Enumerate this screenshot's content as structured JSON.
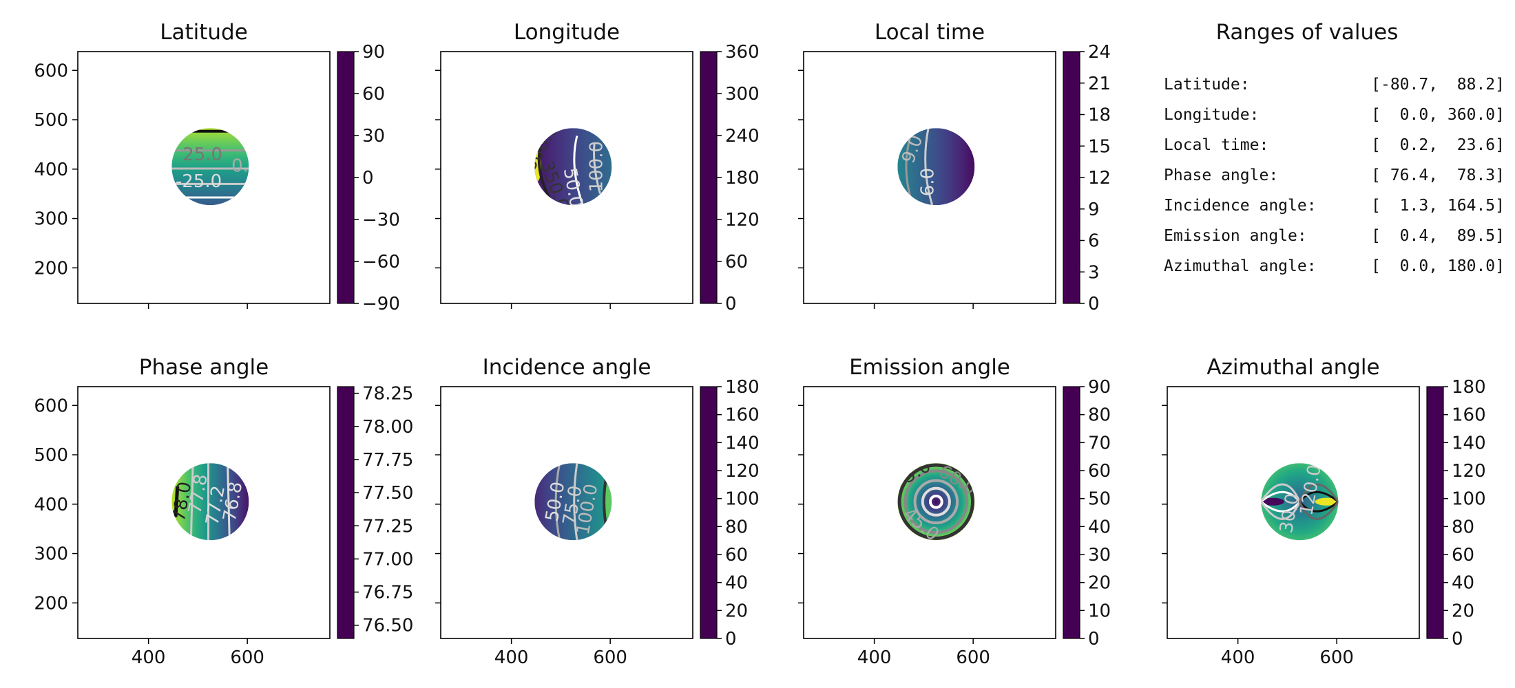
{
  "chart_data": [
    {
      "type": "heatmap",
      "title": "Latitude",
      "x_ticks": [
        400,
        600
      ],
      "x_tick_labels_shown": false,
      "y_ticks": [
        200,
        300,
        400,
        500,
        600
      ],
      "y_tick_labels_shown": true,
      "xlim": [
        257,
        767
      ],
      "ylim": [
        128,
        638
      ],
      "colorbar": {
        "min": -90,
        "max": 90,
        "ticks": [
          90,
          60,
          30,
          0,
          -30,
          -60,
          -90
        ],
        "tick_labels": [
          "90",
          "60",
          "30",
          "0",
          "−30",
          "−60",
          "−90"
        ]
      },
      "disk_center": [
        525,
        405
      ],
      "disk_radius": 78,
      "field": "lat",
      "colormap": "viridis",
      "contour_labels": [
        "25.0",
        "-25.0",
        "0.0"
      ]
    },
    {
      "type": "heatmap",
      "title": "Longitude",
      "x_ticks": [
        400,
        600
      ],
      "x_tick_labels_shown": false,
      "y_ticks": [
        200,
        300,
        400,
        500,
        600
      ],
      "y_tick_labels_shown": false,
      "xlim": [
        257,
        767
      ],
      "ylim": [
        128,
        638
      ],
      "colorbar": {
        "min": 0,
        "max": 360,
        "ticks": [
          360,
          300,
          240,
          180,
          120,
          60,
          0
        ],
        "tick_labels": [
          "360",
          "300",
          "240",
          "180",
          "120",
          "60",
          "0"
        ]
      },
      "disk_center": [
        525,
        405
      ],
      "disk_radius": 78,
      "field": "lon",
      "colormap": "viridis",
      "contour_labels": [
        "300.0",
        "350.0",
        "50.0",
        "100.0"
      ]
    },
    {
      "type": "heatmap",
      "title": "Local time",
      "x_ticks": [
        400,
        600
      ],
      "x_tick_labels_shown": false,
      "y_ticks": [
        200,
        300,
        400,
        500,
        600
      ],
      "y_tick_labels_shown": false,
      "xlim": [
        257,
        767
      ],
      "ylim": [
        128,
        638
      ],
      "colorbar": {
        "min": 0,
        "max": 24,
        "ticks": [
          24,
          21,
          18,
          15,
          12,
          9,
          6,
          3,
          0
        ],
        "tick_labels": [
          "24",
          "21",
          "18",
          "15",
          "12",
          "9",
          "6",
          "3",
          "0"
        ]
      },
      "disk_center": [
        525,
        405
      ],
      "disk_radius": 78,
      "field": "lt",
      "colormap": "viridis",
      "contour_labels": [
        "9.0",
        "6.0"
      ]
    },
    {
      "type": "heatmap",
      "title": "Phase angle",
      "x_ticks": [
        400,
        600
      ],
      "x_tick_labels_shown": true,
      "y_ticks": [
        200,
        300,
        400,
        500,
        600
      ],
      "y_tick_labels_shown": true,
      "xlim": [
        257,
        767
      ],
      "ylim": [
        128,
        638
      ],
      "colorbar": {
        "min": 76.4,
        "max": 78.3,
        "ticks": [
          78.25,
          78.0,
          77.75,
          77.5,
          77.25,
          77.0,
          76.75,
          76.5
        ],
        "tick_labels": [
          "78.25",
          "78.00",
          "77.75",
          "77.50",
          "77.25",
          "77.00",
          "76.75",
          "76.50"
        ]
      },
      "disk_center": [
        525,
        405
      ],
      "disk_radius": 78,
      "field": "phase",
      "colormap": "viridis",
      "contour_labels": [
        "78.0",
        "77.8",
        "77.2",
        "76.8"
      ]
    },
    {
      "type": "heatmap",
      "title": "Incidence angle",
      "x_ticks": [
        400,
        600
      ],
      "x_tick_labels_shown": true,
      "y_ticks": [
        200,
        300,
        400,
        500,
        600
      ],
      "y_tick_labels_shown": false,
      "xlim": [
        257,
        767
      ],
      "ylim": [
        128,
        638
      ],
      "colorbar": {
        "min": 0,
        "max": 180,
        "ticks": [
          180,
          160,
          140,
          120,
          100,
          80,
          60,
          40,
          20,
          0
        ],
        "tick_labels": [
          "180",
          "160",
          "140",
          "120",
          "100",
          "80",
          "60",
          "40",
          "20",
          "0"
        ]
      },
      "disk_center": [
        525,
        405
      ],
      "disk_radius": 78,
      "field": "inc",
      "colormap": "viridis",
      "contour_labels": [
        "50.0",
        "75.0",
        "100.0"
      ]
    },
    {
      "type": "heatmap",
      "title": "Emission angle",
      "x_ticks": [
        400,
        600
      ],
      "x_tick_labels_shown": true,
      "y_ticks": [
        200,
        300,
        400,
        500,
        600
      ],
      "y_tick_labels_shown": false,
      "xlim": [
        257,
        767
      ],
      "ylim": [
        128,
        638
      ],
      "colorbar": {
        "min": 0,
        "max": 90,
        "ticks": [
          90,
          80,
          70,
          60,
          50,
          40,
          30,
          20,
          10,
          0
        ],
        "tick_labels": [
          "90",
          "80",
          "70",
          "60",
          "50",
          "40",
          "30",
          "20",
          "10",
          "0"
        ]
      },
      "disk_center": [
        525,
        405
      ],
      "disk_radius": 78,
      "field": "emi",
      "colormap": "viridis",
      "contour_labels": [
        "75.0",
        "60.0",
        "45.0"
      ]
    },
    {
      "type": "heatmap",
      "title": "Azimuthal angle",
      "x_ticks": [
        400,
        600
      ],
      "x_tick_labels_shown": true,
      "y_ticks": [
        200,
        300,
        400,
        500,
        600
      ],
      "y_tick_labels_shown": false,
      "xlim": [
        257,
        767
      ],
      "ylim": [
        128,
        638
      ],
      "colorbar": {
        "min": 0,
        "max": 180,
        "ticks": [
          180,
          160,
          140,
          120,
          100,
          80,
          60,
          40,
          20,
          0
        ],
        "tick_labels": [
          "180",
          "160",
          "140",
          "120",
          "100",
          "80",
          "60",
          "40",
          "20",
          "0"
        ]
      },
      "disk_center": [
        525,
        405
      ],
      "disk_radius": 78,
      "field": "azi",
      "colormap": "viridis",
      "contour_labels": [
        "30.0",
        "120.0"
      ]
    }
  ],
  "ranges_panel": {
    "title": "Ranges of values",
    "rows": [
      {
        "label": "Latitude:",
        "range": "[-80.7,  88.2]",
        "min": -80.7,
        "max": 88.2
      },
      {
        "label": "Longitude:",
        "range": "[  0.0, 360.0]",
        "min": 0.0,
        "max": 360.0
      },
      {
        "label": "Local time:",
        "range": "[  0.2,  23.6]",
        "min": 0.2,
        "max": 23.6
      },
      {
        "label": "Phase angle:",
        "range": "[ 76.4,  78.3]",
        "min": 76.4,
        "max": 78.3
      },
      {
        "label": "Incidence angle:",
        "range": "[  1.3, 164.5]",
        "min": 1.3,
        "max": 164.5
      },
      {
        "label": "Emission angle:",
        "range": "[  0.4,  89.5]",
        "min": 0.4,
        "max": 89.5
      },
      {
        "label": "Azimuthal angle:",
        "range": "[  0.0, 180.0]",
        "min": 0.0,
        "max": 180.0
      }
    ]
  }
}
